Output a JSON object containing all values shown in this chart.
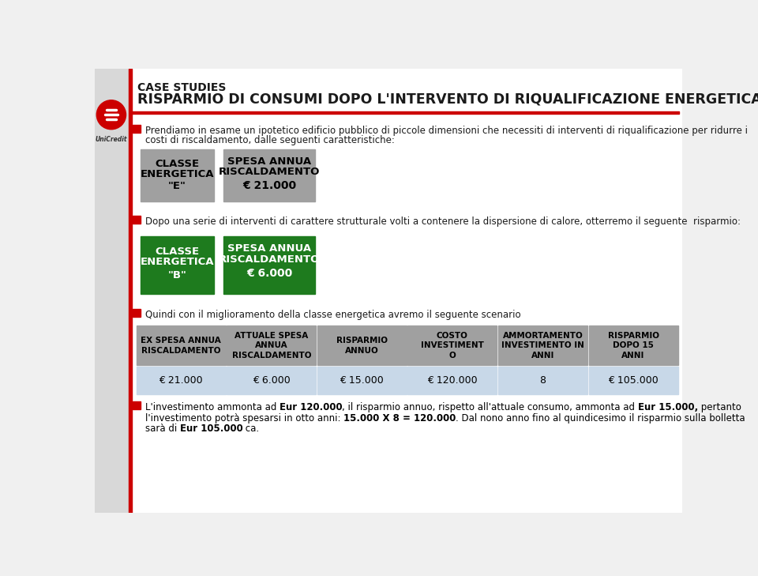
{
  "bg_color": "#f0f0f0",
  "content_bg": "#ffffff",
  "left_bar_color": "#cc0000",
  "title_line1": "CASE STUDIES",
  "title_line2": "RISPARMIO DI CONSUMI DOPO L'INTERVENTO DI RIQUALIFICAZIONE ENERGETICA",
  "bullet_color": "#cc0000",
  "bullet1_line1": "Prendiamo in esame un ipotetico edificio pubblico di piccole dimensioni che necessiti di interventi di riqualificazione per ridurre i",
  "bullet1_line2": "costi di riscaldamento, dalle seguenti caratteristiche:",
  "box_gray": "#a0a0a0",
  "box_green": "#1e7b1e",
  "box_blue_light": "#c8d8e8",
  "box1_line1": "CLASSE",
  "box1_line2": "ENERGETICA",
  "box1_line3": "\"E\"",
  "box2_line1": "SPESA ANNUA",
  "box2_line2": "RISCALDAMENTO",
  "box2_line3": "€ 21.000",
  "bullet2": "Dopo una serie di interventi di carattere strutturale volti a contenere la dispersione di calore, otterremo il seguente  risparmio:",
  "box3_line1": "CLASSE",
  "box3_line2": "ENERGETICA",
  "box3_line3": "\"B\"",
  "box4_line1": "SPESA ANNUA",
  "box4_line2": "RISCALDAMENTO",
  "box4_line3": "€ 6.000",
  "bullet3": "Quindi con il miglioramento della classe energetica avremo il seguente scenario",
  "table_headers": [
    "EX SPESA ANNUA\nRISCALDAMENTO",
    "ATTUALE SPESA\nANNUA\nRISCALDAMENTO",
    "RISPARMIO\nANNUO",
    "COSTO\nINVESTIMENT\nO",
    "AMMORTAMENTO\nINVESTIMENTO IN\nANNI",
    "RISPARMIO\nDOPO 15\nANNI"
  ],
  "table_values": [
    "€ 21.000",
    "€ 6.000",
    "€ 15.000",
    "€ 120.000",
    "8",
    "€ 105.000"
  ],
  "footer_line1_segments": [
    [
      "L'investimento ammonta ad ",
      false
    ],
    [
      "Eur 120.000",
      true
    ],
    [
      ", il risparmio annuo, rispetto all'attuale consumo, ammonta ad ",
      false
    ],
    [
      "Eur 15.000,",
      true
    ],
    [
      " pertanto",
      false
    ]
  ],
  "footer_line2_segments": [
    [
      "l'investimento potrà spesarsi in otto anni: ",
      false
    ],
    [
      "15.000 X 8 = 120.000",
      true
    ],
    [
      ". Dal nono anno fino al quindicesimo il risparmio sulla bolletta",
      false
    ]
  ],
  "footer_line3_segments": [
    [
      "sarà di ",
      false
    ],
    [
      "Eur 105.000",
      true
    ],
    [
      " ca.",
      false
    ]
  ]
}
